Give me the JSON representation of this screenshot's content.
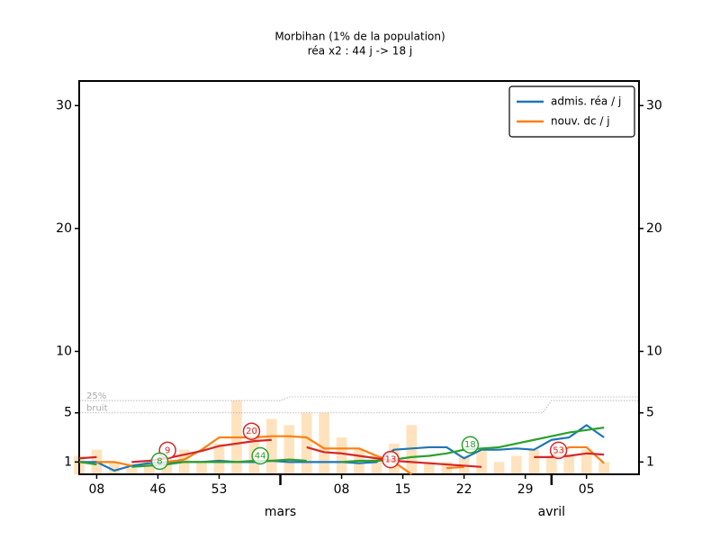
{
  "chart_data": {
    "type": "line",
    "title": "Morbihan (1% de la population)",
    "subtitle": "réa x2 : 44 j -> 18 j",
    "x": [
      37,
      39,
      41,
      43,
      45,
      47,
      49,
      51,
      53,
      55,
      57,
      59,
      61,
      63,
      65,
      67,
      69,
      71,
      73,
      75,
      77,
      79,
      81,
      83,
      85,
      87,
      89,
      91,
      93,
      95,
      97
    ],
    "xlim": [
      37,
      101
    ],
    "xticks": [
      {
        "value": 39,
        "label": "08"
      },
      46,
      53,
      {
        "value": 67,
        "label": "08"
      },
      {
        "value": 74,
        "label": "15"
      },
      {
        "value": 81,
        "label": "22"
      },
      {
        "value": 88,
        "label": "29"
      },
      {
        "value": 95,
        "label": "05"
      }
    ],
    "month_ticks": [
      {
        "value": 60,
        "label": "mars"
      },
      {
        "value": 91,
        "label": "avril"
      }
    ],
    "ylim": [
      0,
      32
    ],
    "yticks": [
      1,
      5,
      10,
      20,
      30
    ],
    "mirror_y_axis": true,
    "legend": "upper right",
    "bars": {
      "color": "#ffe3bf",
      "values": [
        1.5,
        2,
        1,
        0.5,
        1,
        1.5,
        2,
        1,
        2.5,
        6,
        4,
        4.5,
        4,
        5,
        5,
        3,
        2,
        1.5,
        2.5,
        4,
        1,
        1,
        1.5,
        2,
        1,
        1.5,
        2,
        1.5,
        1.5,
        2,
        1
      ]
    },
    "series": [
      {
        "name": "admis. réa / j",
        "color": "#1f77b4",
        "values": [
          1.0,
          1.0,
          0.3,
          0.7,
          0.9,
          1.0,
          1.0,
          1.0,
          1.1,
          1.0,
          1.0,
          1.1,
          1.0,
          1.0,
          1.0,
          1.0,
          0.9,
          1.0,
          2.0,
          2.1,
          2.2,
          2.2,
          1.3,
          2.0,
          2.0,
          2.1,
          2.0,
          2.8,
          3.0,
          4.0,
          3.0
        ]
      },
      {
        "name": "nouv. dc / j",
        "color": "#ff7f0e",
        "values": [
          null,
          1.0,
          1.0,
          0.7,
          null,
          1.0,
          1.2,
          2.0,
          3.0,
          3.0,
          3.0,
          3.1,
          3.1,
          3.0,
          2.1,
          2.1,
          2.1,
          1.5,
          1.0,
          0.0,
          null,
          0.5,
          0.6,
          null,
          null,
          null,
          null,
          1.5,
          2.2,
          2.2,
          0.9
        ]
      },
      {
        "color": "#2ca02c",
        "values": [
          1.0,
          0.8,
          null,
          0.6,
          0.7,
          0.8,
          1.0,
          1.0,
          1.0,
          1.0,
          1.1,
          1.1,
          1.2,
          1.1,
          null,
          1.0,
          1.1,
          1.1,
          1.2,
          1.4,
          1.5,
          1.7,
          2.0,
          2.1,
          2.2,
          2.5,
          2.8,
          3.1,
          3.4,
          3.6,
          3.8
        ]
      },
      {
        "color": "#d62728",
        "values": [
          1.3,
          1.4,
          null,
          1.0,
          1.1,
          1.3,
          1.6,
          1.9,
          2.3,
          2.5,
          2.7,
          2.8,
          null,
          2.2,
          1.8,
          1.7,
          1.5,
          1.3,
          1.1,
          1.0,
          0.9,
          0.8,
          0.7,
          0.6,
          null,
          null,
          1.4,
          1.4,
          1.5,
          1.7,
          1.6
        ]
      }
    ],
    "reference_lines": [
      {
        "label": "25%",
        "x": [
          37,
          60,
          61,
          101
        ],
        "values": [
          6.0,
          6.0,
          6.3,
          6.3
        ]
      },
      {
        "label": "bruit",
        "x": [
          37,
          90,
          91,
          101
        ],
        "values": [
          5.0,
          5.0,
          6.0,
          6.0
        ]
      }
    ],
    "annotations": [
      {
        "text": "9",
        "x": 47.1,
        "y": 1.95,
        "color": "#d62728"
      },
      {
        "text": "8",
        "x": 46.2,
        "y": 1.07,
        "color": "#2ca02c"
      },
      {
        "text": "20",
        "x": 56.7,
        "y": 3.5,
        "color": "#d62728"
      },
      {
        "text": "44",
        "x": 57.7,
        "y": 1.5,
        "color": "#2ca02c"
      },
      {
        "text": "13",
        "x": 72.6,
        "y": 1.2,
        "color": "#d62728"
      },
      {
        "text": "18",
        "x": 81.7,
        "y": 2.4,
        "color": "#2ca02c"
      },
      {
        "text": "53",
        "x": 91.8,
        "y": 1.95,
        "color": "#d62728"
      }
    ]
  }
}
